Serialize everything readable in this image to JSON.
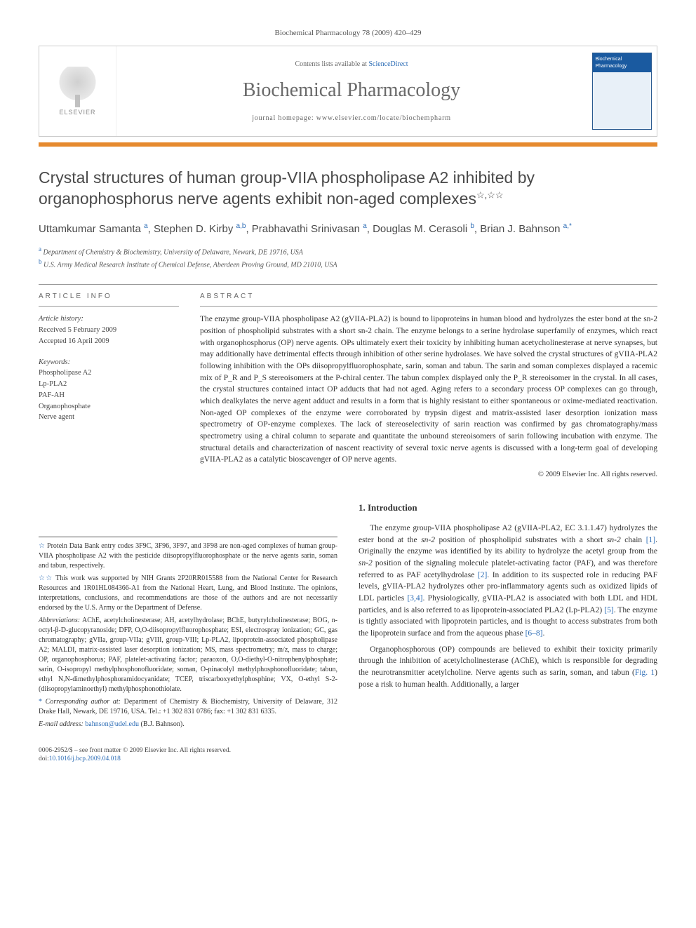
{
  "running_head": "Biochemical Pharmacology 78 (2009) 420–429",
  "masthead": {
    "publisher_word": "ELSEVIER",
    "contents_prefix": "Contents lists available at ",
    "contents_link": "ScienceDirect",
    "journal_name": "Biochemical Pharmacology",
    "homepage_line": "journal homepage: www.elsevier.com/locate/biochempharm",
    "cover_title": "Biochemical Pharmacology"
  },
  "article": {
    "title": "Crystal structures of human group-VIIA phospholipase A2 inhibited by organophosphorus nerve agents exhibit non-aged complexes",
    "title_stars": "☆,☆☆",
    "authors_html": "Uttamkumar Samanta <sup>a</sup>, Stephen D. Kirby <sup>a,b</sup>, Prabhavathi Srinivasan <sup>a</sup>, Douglas M. Cerasoli <sup>b</sup>, Brian J. Bahnson <sup>a,*</sup>",
    "affiliations": [
      {
        "sup": "a",
        "text": "Department of Chemistry & Biochemistry, University of Delaware, Newark, DE 19716, USA"
      },
      {
        "sup": "b",
        "text": "U.S. Army Medical Research Institute of Chemical Defense, Aberdeen Proving Ground, MD 21010, USA"
      }
    ]
  },
  "info": {
    "head": "ARTICLE INFO",
    "history_label": "Article history:",
    "received": "Received 5 February 2009",
    "accepted": "Accepted 16 April 2009",
    "keywords_label": "Keywords:",
    "keywords": [
      "Phospholipase A2",
      "Lp-PLA2",
      "PAF-AH",
      "Organophosphate",
      "Nerve agent"
    ]
  },
  "abstract": {
    "head": "ABSTRACT",
    "text": "The enzyme group-VIIA phospholipase A2 (gVIIA-PLA2) is bound to lipoproteins in human blood and hydrolyzes the ester bond at the sn-2 position of phospholipid substrates with a short sn-2 chain. The enzyme belongs to a serine hydrolase superfamily of enzymes, which react with organophosphorus (OP) nerve agents. OPs ultimately exert their toxicity by inhibiting human acetycholinesterase at nerve synapses, but may additionally have detrimental effects through inhibition of other serine hydrolases. We have solved the crystal structures of gVIIA-PLA2 following inhibition with the OPs diisopropylfluorophosphate, sarin, soman and tabun. The sarin and soman complexes displayed a racemic mix of P_R and P_S stereoisomers at the P-chiral center. The tabun complex displayed only the P_R stereoisomer in the crystal. In all cases, the crystal structures contained intact OP adducts that had not aged. Aging refers to a secondary process OP complexes can go through, which dealkylates the nerve agent adduct and results in a form that is highly resistant to either spontaneous or oxime-mediated reactivation. Non-aged OP complexes of the enzyme were corroborated by trypsin digest and matrix-assisted laser desorption ionization mass spectrometry of OP-enzyme complexes. The lack of stereoselectivity of sarin reaction was confirmed by gas chromatography/mass spectrometry using a chiral column to separate and quantitate the unbound stereoisomers of sarin following incubation with enzyme. The structural details and characterization of nascent reactivity of several toxic nerve agents is discussed with a long-term goal of developing gVIIA-PLA2 as a catalytic bioscavenger of OP nerve agents.",
    "copyright": "© 2009 Elsevier Inc. All rights reserved."
  },
  "footnotes": {
    "f1": {
      "marker": "☆",
      "text": "Protein Data Bank entry codes 3F9C, 3F96, 3F97, and 3F98 are non-aged complexes of human group-VIIA phospholipase A2 with the pesticide diisopropylfluorophosphate or the nerve agents sarin, soman and tabun, respectively."
    },
    "f2": {
      "marker": "☆☆",
      "text": "This work was supported by NIH Grants 2P20RR015588 from the National Center for Research Resources and 1R01HL084366-A1 from the National Heart, Lung, and Blood Institute. The opinions, interpretations, conclusions, and recommendations are those of the authors and are not necessarily endorsed by the U.S. Army or the Department of Defense."
    },
    "abbrev_label": "Abbreviations:",
    "abbrev_text": "AChE, acetylcholinesterase; AH, acetylhydrolase; BChE, butyrylcholinesterase; BOG, n-octyl-β-D-glucopyranoside; DFP, O,O-diisopropylfluorophosphate; ESI, electrospray ionization; GC, gas chromatography; gVIIa, group-VIIa; gVIII, group-VIII; Lp-PLA2, lipoprotein-associated phospholipase A2; MALDI, matrix-assisted laser desorption ionization; MS, mass spectrometry; m/z, mass to charge; OP, organophosphorus; PAF, platelet-activating factor; paraoxon, O,O-diethyl-O-nitrophenylphosphate; sarin, O-isopropyl methylphosphonofluoridate; soman, O-pinacolyl methylphosphonofluoridate; tabun, ethyl N,N-dimethylphosphoramidocyanidate; TCEP, triscarboxyethylphosphine; VX, O-ethyl S-2-(diisopropylaminoethyl) methylphosphonothiolate.",
    "corr_marker": "*",
    "corr_label": "Corresponding author at:",
    "corr_text": "Department of Chemistry & Biochemistry, University of Delaware, 312 Drake Hall, Newark, DE 19716, USA. Tel.: +1 302 831 0786; fax: +1 302 831 6335.",
    "email_label": "E-mail address:",
    "email": "bahnson@udel.edu",
    "email_person": "(B.J. Bahnson)."
  },
  "intro": {
    "head": "1. Introduction",
    "p1": "The enzyme group-VIIA phospholipase A2 (gVIIA-PLA2, EC 3.1.1.47) hydrolyzes the ester bond at the sn-2 position of phospholipid substrates with a short sn-2 chain [1]. Originally the enzyme was identified by its ability to hydrolyze the acetyl group from the sn-2 position of the signaling molecule platelet-activating factor (PAF), and was therefore referred to as PAF acetylhydrolase [2]. In addition to its suspected role in reducing PAF levels, gVIIA-PLA2 hydrolyzes other pro-inflammatory agents such as oxidized lipids of LDL particles [3,4]. Physiologically, gVIIA-PLA2 is associated with both LDL and HDL particles, and is also referred to as lipoprotein-associated PLA2 (Lp-PLA2) [5]. The enzyme is tightly associated with lipoprotein particles, and is thought to access substrates from both the lipoprotein surface and from the aqueous phase [6–8].",
    "p2": "Organophosphorous (OP) compounds are believed to exhibit their toxicity primarily through the inhibition of acetylcholinesterase (AChE), which is responsible for degrading the neurotransmitter acetylcholine. Nerve agents such as sarin, soman, and tabun (Fig. 1) pose a risk to human health. Additionally, a larger"
  },
  "footer": {
    "left_line1": "0006-2952/$ – see front matter © 2009 Elsevier Inc. All rights reserved.",
    "left_line2_prefix": "doi:",
    "doi": "10.1016/j.bcp.2009.04.018"
  },
  "colors": {
    "accent_orange": "#e68a2e",
    "link_blue": "#2a6bb5",
    "cover_blue": "#1a5aa0",
    "text_gray": "#3a3a3a"
  }
}
